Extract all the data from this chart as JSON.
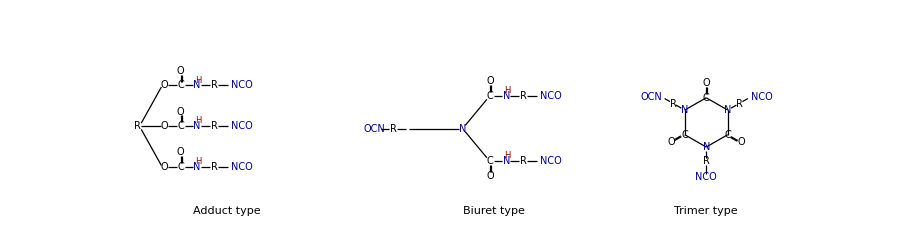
{
  "bg_color": "#ffffff",
  "black": "#000000",
  "dark_red": "#8B0000",
  "dark_blue": "#00008B",
  "font_size": 7.0,
  "label_font_size": 8.0,
  "sections": [
    "Adduct type",
    "Biuret type",
    "Trimer type"
  ]
}
